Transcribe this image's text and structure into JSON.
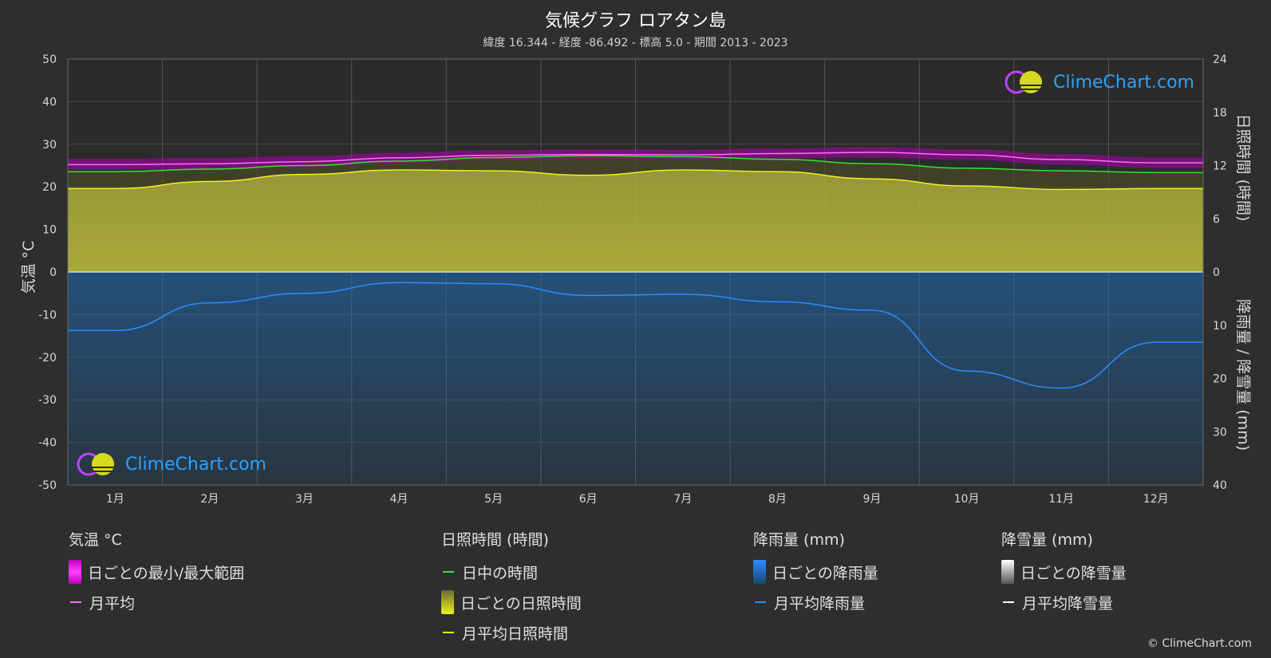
{
  "header": {
    "title": "気候グラフ ロアタン島",
    "subtitle": "緯度 16.344 - 経度 -86.492 - 標高 5.0 - 期間 2013 - 2023"
  },
  "axes": {
    "left_label": "気温 °C",
    "right_top_label": "日照時間 (時間)",
    "right_bottom_label": "降雨量 / 降雪量 (mm)",
    "left_ticks": [
      "50",
      "40",
      "30",
      "20",
      "10",
      "0",
      "-10",
      "-20",
      "-30",
      "-40",
      "-50"
    ],
    "right_top_ticks": [
      "24",
      "18",
      "12",
      "6",
      "0"
    ],
    "right_bottom_ticks": [
      "10",
      "20",
      "30",
      "40"
    ]
  },
  "brand": {
    "name": "ClimeChart.com",
    "copyright": "© ClimeChart.com"
  },
  "colors": {
    "background": "#2e2e2e",
    "temp_range": "#d400d4",
    "temp_mean": "#ff6cff",
    "daylight": "#2ee62e",
    "sunshine_fill": "#b3b33a",
    "sunshine_mean": "#f0f020",
    "rain": "#1f78c8",
    "rain_mean": "#2a8cff",
    "snow_mean": "#ffffff"
  },
  "legend": {
    "temp": {
      "header": "気温 °C",
      "range": "日ごとの最小/最大範囲",
      "mean": "月平均"
    },
    "sun": {
      "header": "日照時間 (時間)",
      "daylight": "日中の時間",
      "daily": "日ごとの日照時間",
      "mean": "月平均日照時間"
    },
    "rain": {
      "header": "降雨量 (mm)",
      "daily": "日ごとの降雨量",
      "mean": "月平均降雨量"
    },
    "snow": {
      "header": "降雪量 (mm)",
      "daily": "日ごとの降雪量",
      "mean": "月平均降雪量"
    }
  },
  "chart_data": {
    "type": "line",
    "categories": [
      "1月",
      "2月",
      "3月",
      "4月",
      "5月",
      "6月",
      "7月",
      "8月",
      "9月",
      "10月",
      "11月",
      "12月"
    ],
    "temp_ylim": [
      -50,
      50
    ],
    "sun_ylim": [
      0,
      24
    ],
    "rain_ylim": [
      0,
      40
    ],
    "series": [
      {
        "name": "月平均",
        "axis": "temp",
        "values": [
          25.2,
          25.4,
          25.9,
          26.8,
          27.4,
          27.6,
          27.5,
          27.8,
          28.1,
          27.5,
          26.4,
          25.6
        ]
      },
      {
        "name": "日中の時間",
        "axis": "sun",
        "values": [
          11.3,
          11.6,
          12.0,
          12.5,
          12.9,
          13.1,
          13.0,
          12.7,
          12.2,
          11.7,
          11.4,
          11.2
        ]
      },
      {
        "name": "月平均日照時間",
        "axis": "sun",
        "values": [
          9.4,
          10.2,
          11.0,
          11.5,
          11.4,
          10.9,
          11.5,
          11.3,
          10.5,
          9.7,
          9.3,
          9.4
        ]
      },
      {
        "name": "月平均降雨量",
        "axis": "rain",
        "values": [
          11.0,
          5.8,
          4.0,
          2.0,
          2.2,
          4.4,
          4.2,
          5.6,
          7.2,
          18.6,
          21.8,
          13.2
        ]
      },
      {
        "name": "月平均降雪量",
        "axis": "rain",
        "values": [
          0,
          0,
          0,
          0,
          0,
          0,
          0,
          0,
          0,
          0,
          0,
          0
        ]
      }
    ],
    "temp_range": {
      "min": [
        24.0,
        24.2,
        24.7,
        25.6,
        26.3,
        26.6,
        26.5,
        26.7,
        26.9,
        26.3,
        25.2,
        24.4
      ],
      "max": [
        26.6,
        26.8,
        27.2,
        28.0,
        28.6,
        28.8,
        28.7,
        29.0,
        29.3,
        28.8,
        27.7,
        26.9
      ]
    }
  }
}
